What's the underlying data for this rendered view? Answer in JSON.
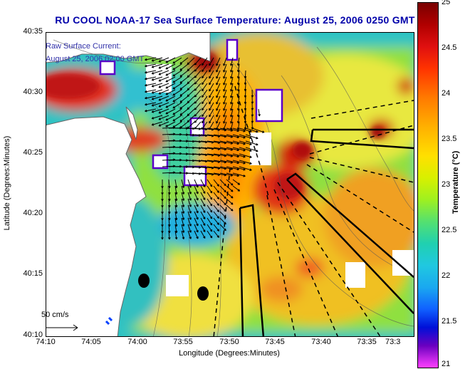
{
  "title": "RU COOL  NOAA-17  Sea Surface Temperature:  August 25, 2006 0250 GMT",
  "current_label": {
    "line1": "Raw Surface Current:",
    "line2": "August 25, 2006 02:00 GMT"
  },
  "axes": {
    "xlabel": "Longitude (Degrees:Minutes)",
    "ylabel": "Latitude (Degrees:Minutes)",
    "xticks": [
      "74:10",
      "74:05",
      "74:00",
      "73:55",
      "73:50",
      "73:45",
      "73:40",
      "73:35",
      "73:3"
    ],
    "yticks": [
      "40:35",
      "40:30",
      "40:25",
      "40:20",
      "40:15",
      "40:10"
    ]
  },
  "colorbar": {
    "title": "Temperature (°C)",
    "ticks": [
      "25",
      "24.5",
      "24",
      "23.5",
      "23",
      "22.5",
      "22",
      "21.5",
      "21"
    ],
    "range": [
      21,
      25
    ]
  },
  "scale_bar": {
    "label": "50 cm/s"
  },
  "colors": {
    "title": "#0000aa",
    "current_label": "#3333aa",
    "land": "#ffffff",
    "cloud_outline": "#5a00c8"
  }
}
